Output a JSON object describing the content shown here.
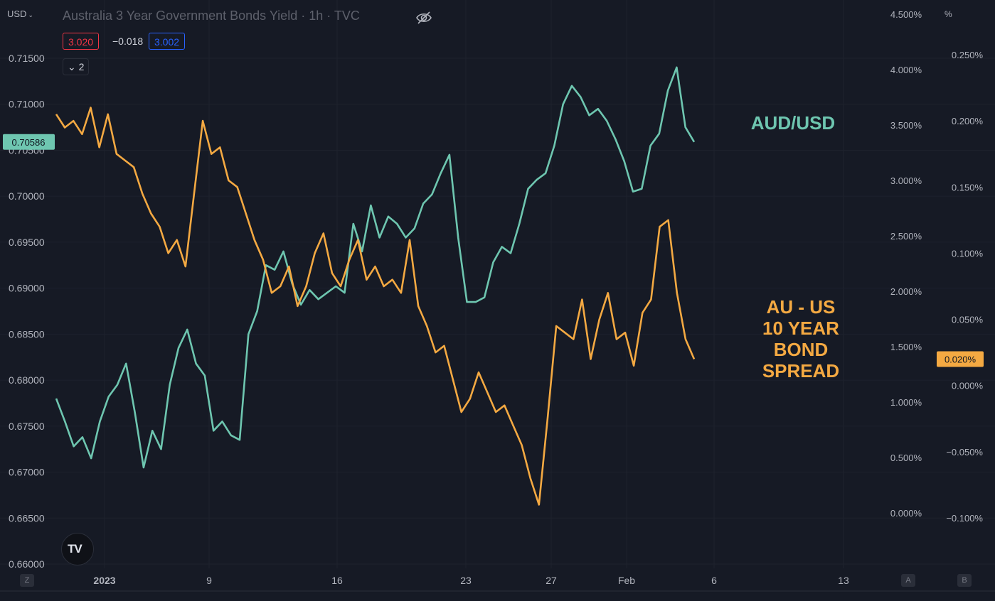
{
  "header": {
    "currency": "USD",
    "title": "Australia 3 Year Government Bonds Yield · 1h · TVC",
    "bid": "3.020",
    "change": "−0.018",
    "ask": "3.002",
    "indicators_count": "2",
    "pct_unit": "%"
  },
  "bottom_buttons": {
    "z": "Z",
    "a": "A",
    "b": "B"
  },
  "logo_text": "TV",
  "colors": {
    "bg": "#161a25",
    "audusd": "#6ec6b0",
    "spread": "#f4a942",
    "grid": "#1e222d",
    "axis_text": "#b2b5be"
  },
  "chart_data": {
    "type": "line",
    "x_tick_labels": [
      "2023",
      "9",
      "16",
      "23",
      "27",
      "Feb",
      "6",
      "13"
    ],
    "left_axis": {
      "ylim": [
        0.66,
        0.7175
      ],
      "ticks": [
        "0.71500",
        "0.71000",
        "0.70500",
        "0.70000",
        "0.69500",
        "0.69000",
        "0.68500",
        "0.68000",
        "0.67500",
        "0.67000",
        "0.66500",
        "0.66000"
      ],
      "last_value_label": "0.70586"
    },
    "mid_axis": {
      "ticks": [
        "4.500%",
        "4.000%",
        "3.500%",
        "3.000%",
        "2.500%",
        "2.000%",
        "1.500%",
        "1.000%",
        "0.500%",
        "0.000%"
      ]
    },
    "right_axis": {
      "ylim": [
        -0.1,
        0.25
      ],
      "ticks": [
        "0.250%",
        "0.200%",
        "0.150%",
        "0.100%",
        "0.050%",
        "0.000%",
        "−0.050%",
        "−0.100%"
      ],
      "last_value_label": "0.020%"
    },
    "series": [
      {
        "name": "AUD/USD",
        "axis": "left",
        "color": "#6ec6b0",
        "values": [
          0.678,
          0.6755,
          0.6728,
          0.6738,
          0.6715,
          0.6755,
          0.6782,
          0.6795,
          0.6818,
          0.6765,
          0.6705,
          0.6745,
          0.6725,
          0.6795,
          0.6835,
          0.6855,
          0.6818,
          0.6805,
          0.6745,
          0.6755,
          0.674,
          0.6735,
          0.685,
          0.6875,
          0.6925,
          0.692,
          0.694,
          0.6905,
          0.6882,
          0.6898,
          0.6888,
          0.6895,
          0.6902,
          0.6895,
          0.697,
          0.694,
          0.699,
          0.6955,
          0.6978,
          0.697,
          0.6955,
          0.6965,
          0.6992,
          0.7002,
          0.7025,
          0.7045,
          0.6955,
          0.6885,
          0.6885,
          0.689,
          0.6928,
          0.6945,
          0.6938,
          0.697,
          0.7008,
          0.7018,
          0.7025,
          0.7055,
          0.71,
          0.712,
          0.7108,
          0.7088,
          0.7095,
          0.7082,
          0.7062,
          0.7038,
          0.7005,
          0.7008,
          0.7055,
          0.7068,
          0.7115,
          0.714,
          0.7075,
          0.7059
        ]
      },
      {
        "name": "AU - US 10 YEAR BOND SPREAD",
        "axis": "right",
        "color": "#f4a942",
        "values": [
          0.205,
          0.195,
          0.2,
          0.19,
          0.21,
          0.18,
          0.205,
          0.175,
          0.17,
          0.165,
          0.145,
          0.13,
          0.12,
          0.1,
          0.11,
          0.09,
          0.145,
          0.2,
          0.175,
          0.18,
          0.155,
          0.15,
          0.13,
          0.11,
          0.095,
          0.07,
          0.075,
          0.09,
          0.06,
          0.075,
          0.1,
          0.115,
          0.085,
          0.075,
          0.095,
          0.11,
          0.08,
          0.09,
          0.075,
          0.08,
          0.07,
          0.11,
          0.06,
          0.045,
          0.025,
          0.03,
          0.005,
          -0.02,
          -0.01,
          0.01,
          -0.005,
          -0.02,
          -0.015,
          -0.03,
          -0.045,
          -0.07,
          -0.09,
          -0.025,
          0.045,
          0.04,
          0.035,
          0.065,
          0.02,
          0.05,
          0.07,
          0.035,
          0.04,
          0.015,
          0.055,
          0.065,
          0.12,
          0.125,
          0.07,
          0.035,
          0.02
        ]
      }
    ],
    "annotations": [
      {
        "text": "AUD/USD",
        "color": "#6ec6b0"
      },
      {
        "lines": [
          "AU - US",
          "10 YEAR",
          "BOND",
          "SPREAD"
        ],
        "color": "#f4a942"
      }
    ]
  }
}
